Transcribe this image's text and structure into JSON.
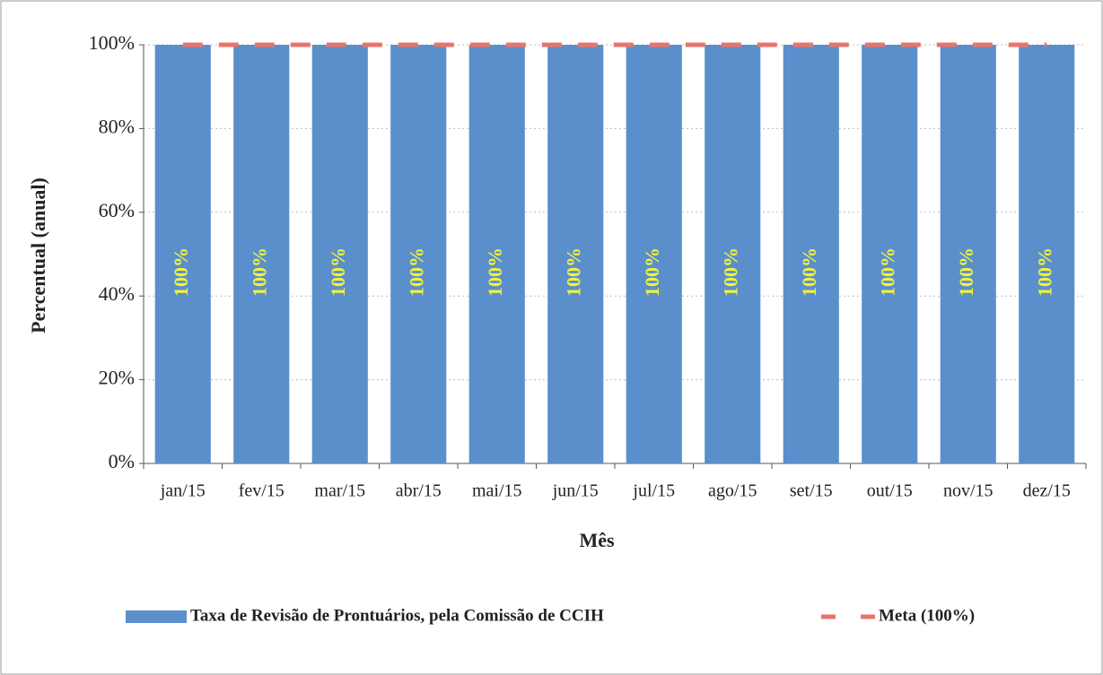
{
  "chart_data": {
    "type": "bar",
    "x_label": "Mês",
    "y_label": "Percentual (anual)",
    "categories": [
      "jan/15",
      "fev/15",
      "mar/15",
      "abr/15",
      "mai/15",
      "jun/15",
      "jul/15",
      "ago/15",
      "set/15",
      "out/15",
      "nov/15",
      "dez/15"
    ],
    "series": [
      {
        "name": "Taxa de Revisão de Prontuários, pela Comissão de CCIH",
        "type": "bar",
        "color": "#5b8fcb",
        "values": [
          100,
          100,
          100,
          100,
          100,
          100,
          100,
          100,
          100,
          100,
          100,
          100
        ],
        "value_labels": [
          "100%",
          "100%",
          "100%",
          "100%",
          "100%",
          "100%",
          "100%",
          "100%",
          "100%",
          "100%",
          "100%",
          "100%"
        ],
        "label_color": "#f2f23a"
      },
      {
        "name": "Meta (100%)",
        "type": "line",
        "color": "#e8746c",
        "dashed": true,
        "values": [
          100,
          100,
          100,
          100,
          100,
          100,
          100,
          100,
          100,
          100,
          100,
          100
        ]
      }
    ],
    "ylim": [
      0,
      100
    ],
    "yticks": [
      {
        "value": 0,
        "label": "0%"
      },
      {
        "value": 20,
        "label": "20%"
      },
      {
        "value": 40,
        "label": "40%"
      },
      {
        "value": 60,
        "label": "60%"
      },
      {
        "value": 80,
        "label": "80%"
      },
      {
        "value": 100,
        "label": "100%"
      }
    ],
    "grid": true,
    "legend": "bottom"
  }
}
